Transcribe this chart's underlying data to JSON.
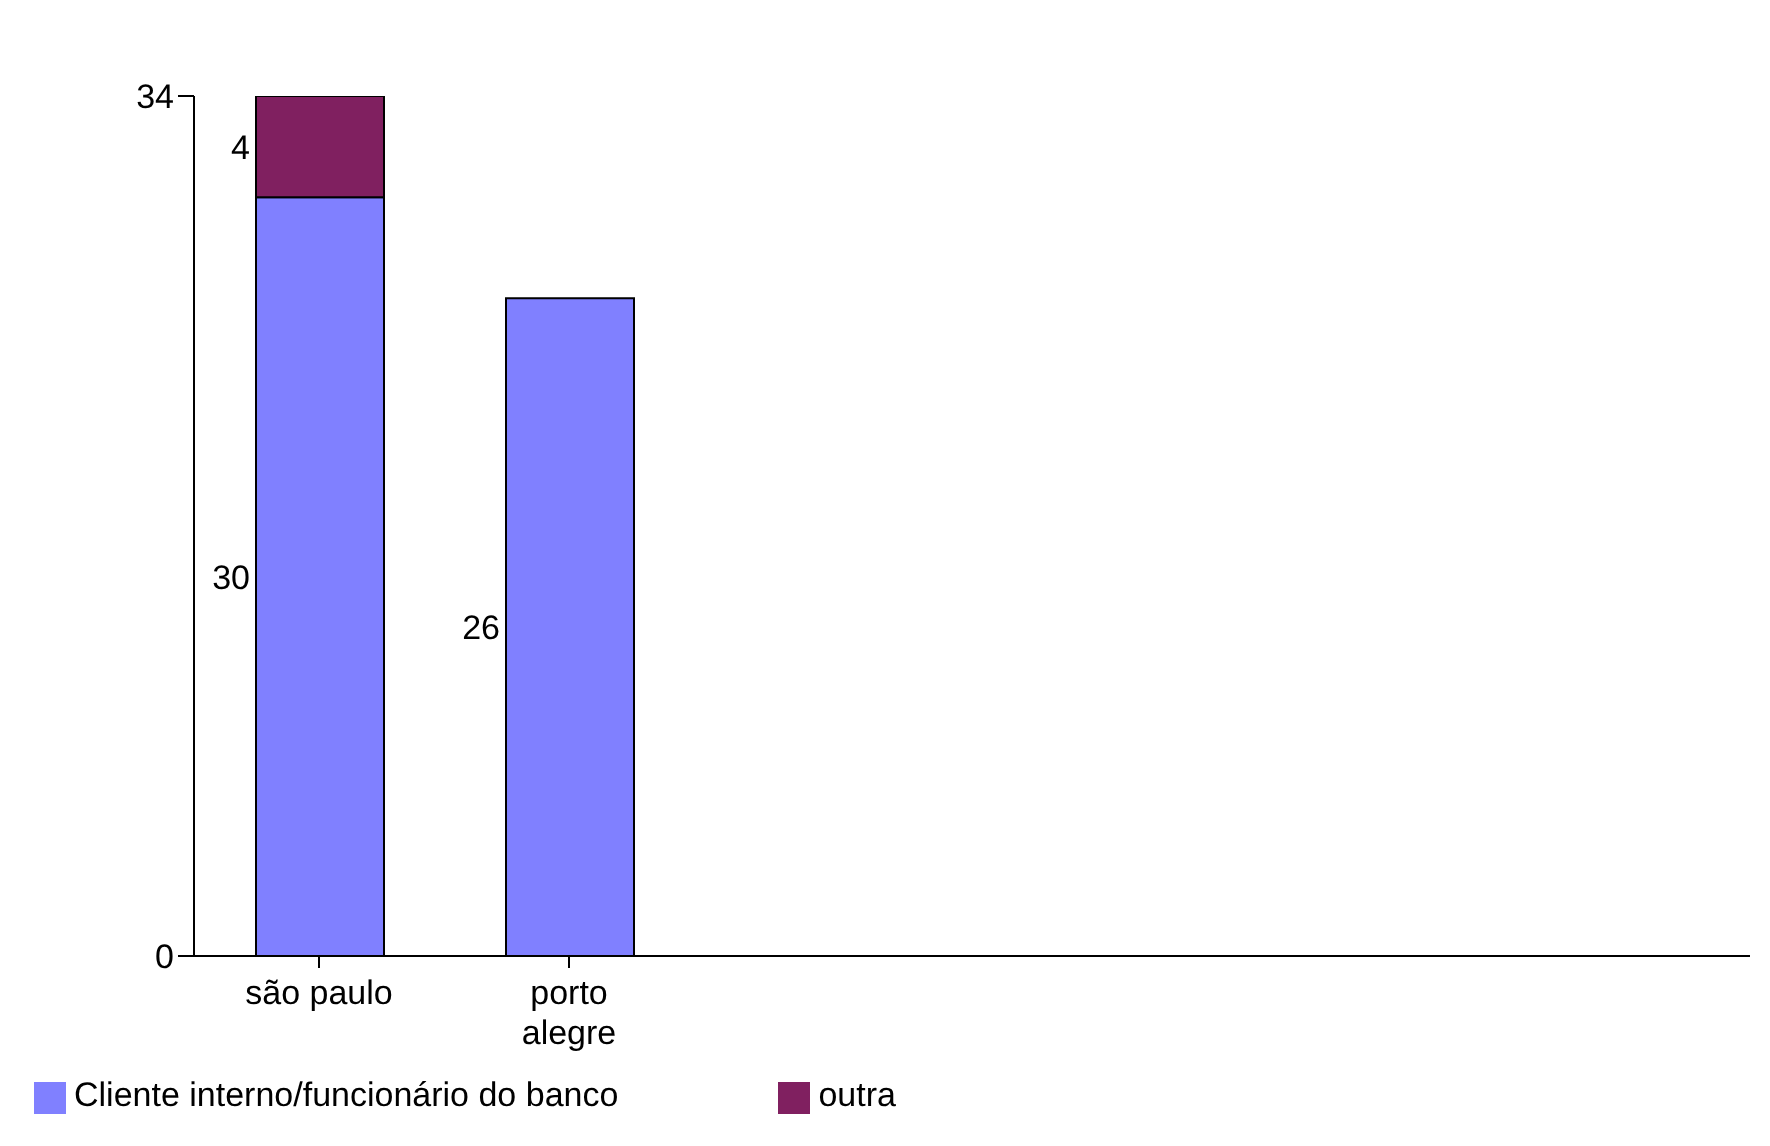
{
  "chart_data": {
    "type": "bar",
    "stacked": true,
    "categories": [
      "são paulo",
      "porto alegre"
    ],
    "series": [
      {
        "name": "Cliente interno/funcionário do banco",
        "color": "#8080ff",
        "values": [
          30,
          26
        ]
      },
      {
        "name": "outra",
        "color": "#802060",
        "values": [
          4,
          null
        ]
      }
    ],
    "ylim": [
      0,
      34
    ],
    "yticks": [
      0,
      34
    ],
    "data_labels": true,
    "legend": "bottom",
    "grid": false
  }
}
